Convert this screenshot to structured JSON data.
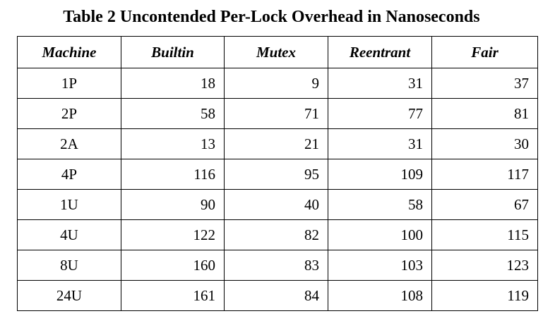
{
  "caption": "Table 2 Uncontended Per-Lock Overhead in Nanoseconds",
  "table": {
    "headers": [
      "Machine",
      "Builtin",
      "Mutex",
      "Reentrant",
      "Fair"
    ],
    "rows": [
      [
        "1P",
        "18",
        "9",
        "31",
        "37"
      ],
      [
        "2P",
        "58",
        "71",
        "77",
        "81"
      ],
      [
        "2A",
        "13",
        "21",
        "31",
        "30"
      ],
      [
        "4P",
        "116",
        "95",
        "109",
        "117"
      ],
      [
        "1U",
        "90",
        "40",
        "58",
        "67"
      ],
      [
        "4U",
        "122",
        "82",
        "100",
        "115"
      ],
      [
        "8U",
        "160",
        "83",
        "103",
        "123"
      ],
      [
        "24U",
        "161",
        "84",
        "108",
        "119"
      ]
    ]
  }
}
